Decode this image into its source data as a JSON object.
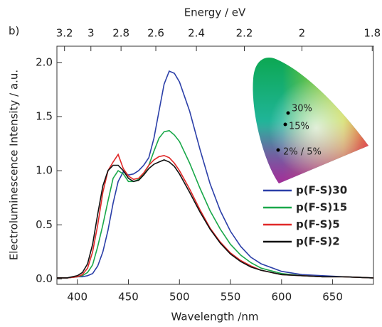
{
  "panel_label": "b)",
  "chart_data": {
    "type": "line",
    "xlabel": "Wavelength /nm",
    "x2label": "Energy / eV",
    "ylabel": "Electroluminescence Intensity / a.u.",
    "x": [
      380,
      390,
      400,
      405,
      410,
      415,
      420,
      425,
      430,
      435,
      440,
      445,
      450,
      455,
      460,
      465,
      470,
      475,
      480,
      485,
      490,
      495,
      500,
      510,
      520,
      530,
      540,
      550,
      560,
      570,
      580,
      600,
      620,
      640,
      660,
      690
    ],
    "series": [
      {
        "name": "p(F-S)30",
        "color": "#2b3fa8",
        "values": [
          0.01,
          0.01,
          0.02,
          0.02,
          0.03,
          0.05,
          0.12,
          0.25,
          0.45,
          0.7,
          0.9,
          0.99,
          0.96,
          0.97,
          1.0,
          1.05,
          1.12,
          1.3,
          1.55,
          1.8,
          1.92,
          1.9,
          1.82,
          1.55,
          1.2,
          0.88,
          0.63,
          0.44,
          0.3,
          0.2,
          0.14,
          0.07,
          0.04,
          0.03,
          0.02,
          0.01
        ]
      },
      {
        "name": "p(F-S)15",
        "color": "#1aa84a",
        "values": [
          0.01,
          0.01,
          0.02,
          0.03,
          0.06,
          0.13,
          0.3,
          0.5,
          0.72,
          0.93,
          1.0,
          0.97,
          0.9,
          0.9,
          0.92,
          0.97,
          1.05,
          1.18,
          1.3,
          1.36,
          1.37,
          1.33,
          1.27,
          1.07,
          0.84,
          0.63,
          0.46,
          0.32,
          0.22,
          0.15,
          0.1,
          0.05,
          0.03,
          0.02,
          0.02,
          0.01
        ]
      },
      {
        "name": "p(F-S)5",
        "color": "#e02828",
        "values": [
          0.01,
          0.01,
          0.02,
          0.04,
          0.1,
          0.25,
          0.5,
          0.8,
          1.0,
          1.08,
          1.15,
          1.02,
          0.95,
          0.92,
          0.93,
          0.98,
          1.05,
          1.1,
          1.13,
          1.14,
          1.12,
          1.07,
          1.0,
          0.83,
          0.64,
          0.47,
          0.34,
          0.24,
          0.17,
          0.12,
          0.08,
          0.04,
          0.03,
          0.02,
          0.02,
          0.01
        ]
      },
      {
        "name": "p(F-S)2",
        "color": "#111111",
        "values": [
          0.01,
          0.01,
          0.03,
          0.06,
          0.14,
          0.32,
          0.6,
          0.86,
          1.0,
          1.05,
          1.05,
          1.0,
          0.93,
          0.9,
          0.91,
          0.96,
          1.02,
          1.06,
          1.08,
          1.1,
          1.08,
          1.04,
          0.97,
          0.8,
          0.62,
          0.46,
          0.33,
          0.23,
          0.16,
          0.11,
          0.08,
          0.04,
          0.03,
          0.02,
          0.02,
          0.01
        ]
      }
    ],
    "xlim": [
      380,
      690
    ],
    "ylim": [
      -0.05,
      2.15
    ],
    "xticks": [
      400,
      450,
      500,
      550,
      600,
      650
    ],
    "yticks": [
      {
        "value": 0,
        "label": "0.0"
      },
      0.5,
      {
        "value": 1,
        "label": "1.0"
      },
      1.5,
      {
        "value": 2,
        "label": "2.0"
      }
    ],
    "x2ticks": [
      {
        "value": 387.45,
        "label": "3.2"
      },
      {
        "value": 413.28,
        "label": "3"
      },
      {
        "value": 442.8,
        "label": "2.8"
      },
      {
        "value": 476.86,
        "label": "2.6"
      },
      {
        "value": 516.6,
        "label": "2.4"
      },
      {
        "value": 563.56,
        "label": "2.2"
      },
      {
        "value": 619.92,
        "label": "2"
      },
      {
        "value": 688.8,
        "label": "1.8"
      }
    ],
    "inset_labels": [
      "30%",
      "15%",
      "2% / 5%"
    ]
  }
}
